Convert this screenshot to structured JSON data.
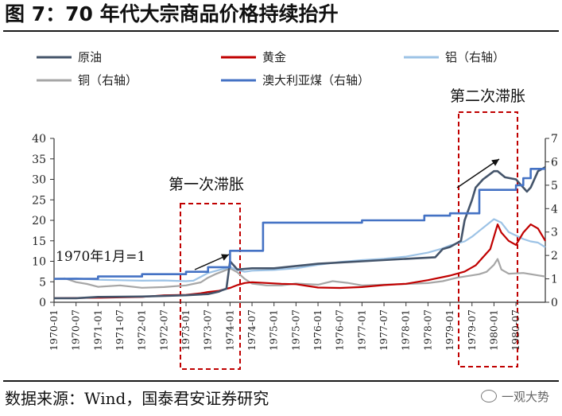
{
  "title": "图 7：70 年代大宗商品价格持续抬升",
  "source": "数据来源：Wind，国泰君安证券研究",
  "watermark": "一观大势",
  "chart_data": {
    "type": "line",
    "legend": [
      {
        "name": "原油",
        "color": "#44546a"
      },
      {
        "name": "黄金",
        "color": "#c00000"
      },
      {
        "name": "铝（右轴）",
        "color": "#9dc3e6"
      },
      {
        "name": "铜（右轴）",
        "color": "#a6a6a6"
      },
      {
        "name": "澳大利亚煤（右轴）",
        "color": "#4472c4"
      }
    ],
    "x_ticks": [
      "1970-01",
      "1970-07",
      "1971-01",
      "1971-07",
      "1972-01",
      "1972-07",
      "1973-01",
      "1973-07",
      "1974-01",
      "1974-07",
      "1975-01",
      "1975-07",
      "1976-01",
      "1976-07",
      "1977-01",
      "1977-07",
      "1978-01",
      "1978-07",
      "1979-01",
      "1979-07",
      "1980-01",
      "1980-07"
    ],
    "y_left": {
      "ticks": [
        0,
        5,
        10,
        15,
        20,
        25,
        30,
        35,
        40
      ],
      "lim": [
        0,
        40
      ]
    },
    "y_right": {
      "ticks": [
        0,
        1,
        2,
        3,
        4,
        5,
        6,
        7
      ],
      "lim": [
        0,
        7
      ]
    },
    "grid": false,
    "annotations": {
      "box1_label": "第一次滞胀",
      "box2_label": "第二次滞胀",
      "base_label": "1970年1月=1"
    },
    "series": [
      {
        "name": "原油",
        "axis": "left",
        "color": "#44546a",
        "points": [
          [
            0,
            1
          ],
          [
            6,
            1
          ],
          [
            12,
            1.3
          ],
          [
            24,
            1.4
          ],
          [
            36,
            1.7
          ],
          [
            42,
            2
          ],
          [
            45,
            2.6
          ],
          [
            46,
            3
          ],
          [
            47,
            3.3
          ],
          [
            48,
            10
          ],
          [
            49,
            9
          ],
          [
            50,
            8
          ],
          [
            54,
            8.3
          ],
          [
            60,
            8.3
          ],
          [
            72,
            9.4
          ],
          [
            84,
            10
          ],
          [
            96,
            10.6
          ],
          [
            104,
            11
          ],
          [
            106,
            13
          ],
          [
            108,
            13.5
          ],
          [
            111,
            15
          ],
          [
            112,
            20
          ],
          [
            114,
            25
          ],
          [
            115,
            28
          ],
          [
            117,
            30
          ],
          [
            120,
            32
          ],
          [
            121,
            32
          ],
          [
            123,
            30.5
          ],
          [
            126,
            30
          ],
          [
            127,
            29
          ],
          [
            129,
            27
          ],
          [
            130,
            28
          ],
          [
            132,
            32
          ],
          [
            134,
            33
          ]
        ]
      },
      {
        "name": "黄金",
        "axis": "left",
        "color": "#c00000",
        "points": [
          [
            0,
            1
          ],
          [
            12,
            1.1
          ],
          [
            24,
            1.3
          ],
          [
            30,
            1.7
          ],
          [
            36,
            1.8
          ],
          [
            40,
            2.2
          ],
          [
            42,
            2.5
          ],
          [
            45,
            2.8
          ],
          [
            47,
            3.3
          ],
          [
            48,
            3.5
          ],
          [
            50,
            4.2
          ],
          [
            52,
            4.7
          ],
          [
            54,
            4.9
          ],
          [
            58,
            4.7
          ],
          [
            62,
            4.5
          ],
          [
            66,
            4.4
          ],
          [
            72,
            3.6
          ],
          [
            78,
            3.5
          ],
          [
            84,
            3.7
          ],
          [
            90,
            4.2
          ],
          [
            96,
            4.5
          ],
          [
            102,
            5.4
          ],
          [
            108,
            6.5
          ],
          [
            112,
            7.5
          ],
          [
            115,
            9
          ],
          [
            117,
            11
          ],
          [
            119,
            13
          ],
          [
            120,
            16
          ],
          [
            121,
            19
          ],
          [
            122,
            17
          ],
          [
            124,
            15
          ],
          [
            126,
            14
          ],
          [
            128,
            17
          ],
          [
            130,
            19
          ],
          [
            132,
            18
          ],
          [
            134,
            15
          ]
        ]
      },
      {
        "name": "铝（右轴）",
        "axis": "right",
        "color": "#9dc3e6",
        "points": [
          [
            0,
            1
          ],
          [
            6,
            1.02
          ],
          [
            12,
            0.96
          ],
          [
            18,
            0.94
          ],
          [
            24,
            0.92
          ],
          [
            30,
            0.93
          ],
          [
            36,
            0.9
          ],
          [
            38,
            0.92
          ],
          [
            42,
            1.25
          ],
          [
            45,
            1.38
          ],
          [
            48,
            1.5
          ],
          [
            50,
            1.38
          ],
          [
            52,
            1.3
          ],
          [
            54,
            1.35
          ],
          [
            60,
            1.38
          ],
          [
            66,
            1.45
          ],
          [
            72,
            1.6
          ],
          [
            78,
            1.72
          ],
          [
            84,
            1.8
          ],
          [
            90,
            1.86
          ],
          [
            96,
            1.95
          ],
          [
            102,
            2.12
          ],
          [
            106,
            2.3
          ],
          [
            108,
            2.43
          ],
          [
            112,
            2.6
          ],
          [
            114,
            2.8
          ],
          [
            116,
            3.05
          ],
          [
            118,
            3.3
          ],
          [
            120,
            3.55
          ],
          [
            122,
            3.4
          ],
          [
            124,
            3.0
          ],
          [
            126,
            2.85
          ],
          [
            128,
            2.7
          ],
          [
            130,
            2.6
          ],
          [
            132,
            2.55
          ],
          [
            134,
            2.35
          ]
        ]
      },
      {
        "name": "铜（右轴）",
        "axis": "right",
        "color": "#a6a6a6",
        "points": [
          [
            0,
            1
          ],
          [
            3,
            1.02
          ],
          [
            6,
            0.86
          ],
          [
            9,
            0.78
          ],
          [
            12,
            0.66
          ],
          [
            18,
            0.72
          ],
          [
            24,
            0.62
          ],
          [
            30,
            0.65
          ],
          [
            36,
            0.72
          ],
          [
            40,
            0.85
          ],
          [
            42,
            1.05
          ],
          [
            44,
            1.2
          ],
          [
            46,
            1.32
          ],
          [
            48,
            1.45
          ],
          [
            50,
            1.28
          ],
          [
            52,
            1.0
          ],
          [
            54,
            0.8
          ],
          [
            58,
            0.72
          ],
          [
            62,
            0.72
          ],
          [
            66,
            0.8
          ],
          [
            72,
            0.75
          ],
          [
            76,
            0.9
          ],
          [
            80,
            0.83
          ],
          [
            84,
            0.72
          ],
          [
            90,
            0.75
          ],
          [
            96,
            0.78
          ],
          [
            102,
            0.82
          ],
          [
            106,
            0.9
          ],
          [
            110,
            1.05
          ],
          [
            114,
            1.15
          ],
          [
            116,
            1.2
          ],
          [
            118,
            1.3
          ],
          [
            120,
            1.6
          ],
          [
            121,
            1.85
          ],
          [
            122,
            1.4
          ],
          [
            124,
            1.22
          ],
          [
            128,
            1.25
          ],
          [
            132,
            1.15
          ],
          [
            134,
            1.1
          ]
        ]
      },
      {
        "name": "澳大利亚煤（右轴）",
        "axis": "right",
        "color": "#4472c4",
        "points": [
          [
            0,
            1
          ],
          [
            12,
            1
          ],
          [
            12,
            1.1
          ],
          [
            24,
            1.1
          ],
          [
            24,
            1.2
          ],
          [
            36,
            1.2
          ],
          [
            36,
            1.3
          ],
          [
            42,
            1.3
          ],
          [
            42,
            1.5
          ],
          [
            48,
            1.5
          ],
          [
            48,
            2.2
          ],
          [
            57,
            2.2
          ],
          [
            57,
            3.4
          ],
          [
            84,
            3.4
          ],
          [
            84,
            3.5
          ],
          [
            101,
            3.5
          ],
          [
            101,
            3.7
          ],
          [
            108,
            3.7
          ],
          [
            108,
            3.8
          ],
          [
            116,
            3.8
          ],
          [
            116,
            4.8
          ],
          [
            126,
            4.8
          ],
          [
            126,
            5
          ],
          [
            128,
            5
          ],
          [
            128,
            5.3
          ],
          [
            130,
            5.3
          ],
          [
            130,
            5.7
          ],
          [
            134,
            5.7
          ]
        ]
      }
    ]
  }
}
